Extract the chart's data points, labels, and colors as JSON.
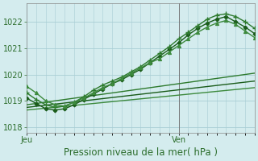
{
  "background_color": "#d4ecee",
  "plot_bg_color": "#d4ecee",
  "grid_color": "#a8cdd4",
  "ylim": [
    1017.8,
    1022.7
  ],
  "yticks": [
    1018,
    1019,
    1020,
    1021,
    1022
  ],
  "xlabel": "Pression niveau de la mer( hPa )",
  "xlabel_fontsize": 8.5,
  "tick_fontsize": 7,
  "jeu_label": "Jeu",
  "ven_label": "Ven",
  "xticks_pos": [
    0,
    48
  ],
  "xlim": [
    0,
    72
  ],
  "vline_x": 48,
  "series_curved": [
    {
      "x": [
        0,
        3,
        6,
        9,
        12,
        15,
        18,
        21,
        24,
        27,
        30,
        33,
        36,
        39,
        42,
        45,
        48,
        51,
        54,
        57,
        60,
        63,
        66,
        69,
        72
      ],
      "y": [
        1019.3,
        1019.05,
        1018.85,
        1018.75,
        1018.8,
        1018.95,
        1019.15,
        1019.4,
        1019.6,
        1019.75,
        1019.9,
        1020.1,
        1020.3,
        1020.55,
        1020.8,
        1021.05,
        1021.35,
        1021.6,
        1021.85,
        1022.1,
        1022.25,
        1022.3,
        1022.2,
        1022.0,
        1021.75
      ],
      "marker": "+",
      "lw": 1.0,
      "color": "#2d7a2d",
      "ms": 4,
      "mew": 1.0,
      "zorder": 5
    },
    {
      "x": [
        0,
        3,
        6,
        9,
        12,
        15,
        18,
        21,
        24,
        27,
        30,
        33,
        36,
        39,
        42,
        45,
        48,
        51,
        54,
        57,
        60,
        63,
        66,
        69,
        72
      ],
      "y": [
        1019.1,
        1018.9,
        1018.7,
        1018.65,
        1018.7,
        1018.85,
        1019.05,
        1019.25,
        1019.45,
        1019.65,
        1019.8,
        1020.0,
        1020.2,
        1020.45,
        1020.7,
        1020.95,
        1021.2,
        1021.5,
        1021.75,
        1021.95,
        1022.1,
        1022.2,
        1022.0,
        1021.8,
        1021.55
      ],
      "marker": "D",
      "lw": 1.0,
      "color": "#1a5c1a",
      "ms": 2.5,
      "mew": 0.8,
      "zorder": 4
    },
    {
      "x": [
        0,
        3,
        6,
        9,
        12,
        15,
        18,
        21,
        24,
        27,
        30,
        33,
        36,
        39,
        42,
        45,
        48,
        51,
        54,
        57,
        60,
        63,
        66,
        69,
        72
      ],
      "y": [
        1019.55,
        1019.3,
        1019.0,
        1018.85,
        1018.8,
        1018.95,
        1019.1,
        1019.3,
        1019.5,
        1019.65,
        1019.85,
        1020.05,
        1020.25,
        1020.45,
        1020.6,
        1020.85,
        1021.1,
        1021.35,
        1021.6,
        1021.8,
        1021.95,
        1022.05,
        1021.9,
        1021.65,
        1021.4
      ],
      "marker": "^",
      "lw": 1.0,
      "color": "#3d8a3d",
      "ms": 3.0,
      "mew": 0.8,
      "zorder": 6
    }
  ],
  "series_flat": [
    {
      "x": [
        0,
        72
      ],
      "y": [
        1018.85,
        1020.05
      ],
      "lw": 1.0,
      "color": "#2d7a2d",
      "zorder": 3
    },
    {
      "x": [
        0,
        72
      ],
      "y": [
        1018.75,
        1019.75
      ],
      "lw": 1.0,
      "color": "#1a5c1a",
      "zorder": 3
    },
    {
      "x": [
        0,
        72
      ],
      "y": [
        1018.65,
        1019.5
      ],
      "lw": 1.0,
      "color": "#3d8a3d",
      "zorder": 3
    }
  ]
}
